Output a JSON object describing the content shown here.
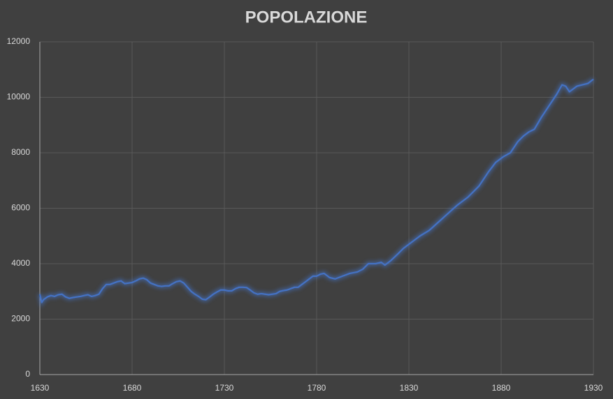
{
  "chart_data": {
    "type": "line",
    "title": "POPOLAZIONE",
    "x": [
      1630,
      1631,
      1632,
      1634,
      1636,
      1638,
      1640,
      1642,
      1644,
      1646,
      1648,
      1650,
      1652,
      1654,
      1656,
      1658,
      1660,
      1662,
      1664,
      1666,
      1668,
      1670,
      1672,
      1674,
      1676,
      1678,
      1680,
      1682,
      1684,
      1686,
      1688,
      1690,
      1692,
      1694,
      1696,
      1698,
      1700,
      1702,
      1704,
      1706,
      1708,
      1710,
      1712,
      1714,
      1716,
      1718,
      1720,
      1722,
      1724,
      1726,
      1728,
      1730,
      1732,
      1734,
      1736,
      1738,
      1740,
      1742,
      1744,
      1746,
      1748,
      1750,
      1752,
      1754,
      1756,
      1758,
      1760,
      1762,
      1764,
      1766,
      1768,
      1770,
      1772,
      1774,
      1776,
      1778,
      1780,
      1782,
      1784,
      1787,
      1790,
      1794,
      1798,
      1802,
      1805,
      1808,
      1812,
      1815,
      1817,
      1820,
      1824,
      1827,
      1830,
      1833,
      1836,
      1841,
      1846,
      1851,
      1856,
      1862,
      1868,
      1873,
      1877,
      1881,
      1885,
      1889,
      1892,
      1895,
      1898,
      1902,
      1906,
      1910,
      1913,
      1915,
      1917,
      1921,
      1924,
      1927,
      1930
    ],
    "series": [
      {
        "name": "Popolazione",
        "color": "#4472c4",
        "values": [
          2900,
          2600,
          2700,
          2800,
          2850,
          2820,
          2880,
          2900,
          2800,
          2750,
          2780,
          2800,
          2820,
          2850,
          2880,
          2820,
          2850,
          2900,
          3100,
          3250,
          3250,
          3300,
          3350,
          3380,
          3280,
          3300,
          3320,
          3380,
          3450,
          3480,
          3420,
          3300,
          3250,
          3200,
          3180,
          3200,
          3200,
          3280,
          3350,
          3380,
          3300,
          3150,
          3000,
          2900,
          2820,
          2720,
          2700,
          2800,
          2900,
          2980,
          3050,
          3050,
          3020,
          3020,
          3100,
          3150,
          3150,
          3140,
          3050,
          2950,
          2900,
          2920,
          2900,
          2880,
          2900,
          2920,
          3000,
          3030,
          3050,
          3100,
          3150,
          3150,
          3250,
          3350,
          3450,
          3550,
          3550,
          3620,
          3650,
          3500,
          3450,
          3550,
          3650,
          3700,
          3800,
          4000,
          4000,
          4050,
          3950,
          4100,
          4350,
          4550,
          4700,
          4850,
          5000,
          5200,
          5500,
          5800,
          6100,
          6400,
          6800,
          7300,
          7650,
          7850,
          8000,
          8400,
          8600,
          8750,
          8850,
          9300,
          9700,
          10100,
          10450,
          10400,
          10200,
          10400,
          10450,
          10500,
          10650
        ]
      }
    ],
    "xlim": [
      1630,
      1930
    ],
    "xticks": [
      1630,
      1680,
      1730,
      1780,
      1830,
      1880,
      1930
    ],
    "ylim": [
      0,
      12000
    ],
    "yticks": [
      0,
      2000,
      4000,
      6000,
      8000,
      10000,
      12000
    ],
    "grid": true
  }
}
